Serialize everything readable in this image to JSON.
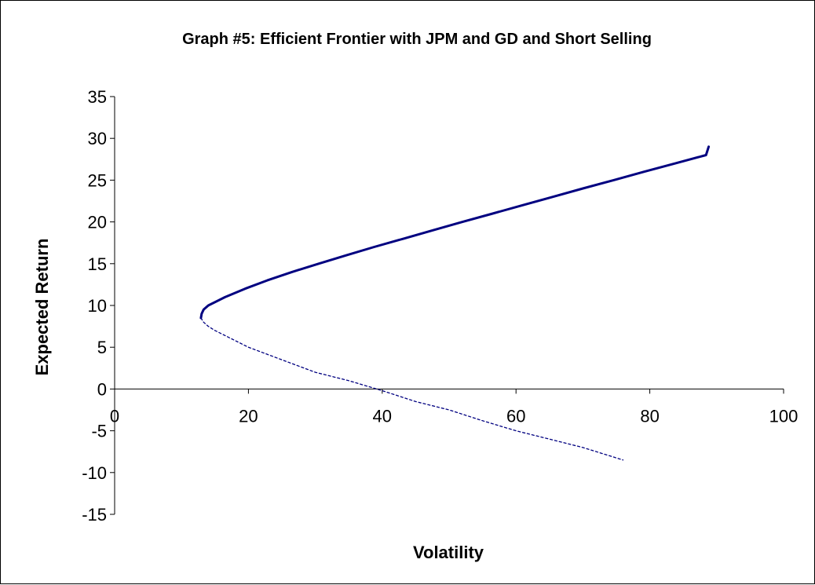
{
  "chart_data": {
    "type": "line",
    "title": "Graph #5: Efficient Frontier with JPM and GD and Short Selling",
    "xlabel": "Volatility",
    "ylabel": "Expected Return",
    "xlim": [
      0,
      100
    ],
    "ylim": [
      -15,
      35
    ],
    "xticks": [
      "0",
      "20",
      "40",
      "60",
      "80",
      "100"
    ],
    "yticks": [
      "35",
      "30",
      "25",
      "20",
      "15",
      "10",
      "5",
      "0",
      "-5",
      "-10",
      "-15"
    ],
    "grid": false,
    "legend": "none",
    "series": [
      {
        "style": "solid",
        "color": "#000080",
        "points": [
          [
            12.9,
            8.5
          ],
          [
            13.0,
            9.0
          ],
          [
            13.3,
            9.5
          ],
          [
            14.0,
            10.0
          ],
          [
            16.5,
            11.0
          ],
          [
            19.5,
            12.0
          ],
          [
            22.8,
            13.0
          ],
          [
            26.5,
            14.0
          ],
          [
            30.5,
            15.0
          ],
          [
            34.6,
            16.0
          ],
          [
            38.8,
            17.0
          ],
          [
            43.2,
            18.0
          ],
          [
            47.6,
            19.0
          ],
          [
            52.0,
            20.0
          ],
          [
            56.5,
            21.0
          ],
          [
            61.0,
            22.0
          ],
          [
            65.5,
            23.0
          ],
          [
            70.0,
            24.0
          ],
          [
            74.6,
            25.0
          ],
          [
            79.1,
            26.0
          ],
          [
            83.8,
            27.0
          ],
          [
            88.4,
            28.0
          ],
          [
            88.8,
            29.0
          ]
        ]
      },
      {
        "style": "dotted",
        "color": "#000080",
        "points": [
          [
            12.9,
            8.5
          ],
          [
            13.3,
            8.0
          ],
          [
            14.0,
            7.5
          ],
          [
            15.0,
            7.0
          ],
          [
            20.0,
            5.0
          ],
          [
            25.0,
            3.5
          ],
          [
            30.0,
            2.0
          ],
          [
            35.0,
            1.0
          ],
          [
            40.0,
            -0.2
          ],
          [
            45.0,
            -1.5
          ],
          [
            50.0,
            -2.5
          ],
          [
            55.0,
            -3.8
          ],
          [
            60.0,
            -5.0
          ],
          [
            65.0,
            -6.0
          ],
          [
            70.0,
            -7.0
          ],
          [
            76.0,
            -8.5
          ]
        ]
      }
    ]
  }
}
